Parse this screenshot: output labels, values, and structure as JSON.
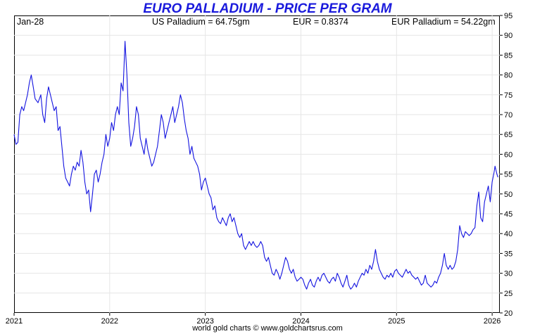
{
  "header": {
    "date": "Jan-28",
    "us_price": "US Palladium = 64.75gm",
    "eur_rate": "EUR = 0.8374",
    "eur_price": "EUR Palladium = 54.22gm"
  },
  "footer": "world gold charts © www.goldchartsrus.com",
  "colors": {
    "line": "#1414e0",
    "title": "#1a1adc",
    "grid": "#e6e6e6"
  },
  "chart_data": {
    "type": "line",
    "title": "EURO PALLADIUM - PRICE PER GRAM",
    "xlabel": "",
    "ylabel": "",
    "xlim": [
      2021.0,
      2026.08
    ],
    "ylim": [
      20,
      95
    ],
    "y_axis_side": "right",
    "x_ticks": [
      2021,
      2022,
      2023,
      2024,
      2025,
      2026
    ],
    "x_tick_labels": [
      "2021",
      "2022",
      "2023",
      "2024",
      "2025",
      "2026"
    ],
    "y_ticks": [
      20,
      25,
      30,
      35,
      40,
      45,
      50,
      55,
      60,
      65,
      70,
      75,
      80,
      85,
      90,
      95
    ],
    "y_tick_labels": [
      "20",
      "25",
      "30",
      "35",
      "40",
      "45",
      "50",
      "55",
      "60",
      "65",
      "70",
      "75",
      "80",
      "85",
      "90",
      "95"
    ],
    "grid": true,
    "series": [
      {
        "values": [
          [
            2021.0,
            65
          ],
          [
            2021.02,
            62.5
          ],
          [
            2021.04,
            63
          ],
          [
            2021.06,
            70
          ],
          [
            2021.08,
            72
          ],
          [
            2021.1,
            71
          ],
          [
            2021.12,
            73
          ],
          [
            2021.14,
            75
          ],
          [
            2021.16,
            78
          ],
          [
            2021.18,
            80
          ],
          [
            2021.2,
            77
          ],
          [
            2021.22,
            74
          ],
          [
            2021.25,
            73
          ],
          [
            2021.28,
            75
          ],
          [
            2021.3,
            70
          ],
          [
            2021.32,
            68
          ],
          [
            2021.34,
            74
          ],
          [
            2021.36,
            77
          ],
          [
            2021.38,
            75
          ],
          [
            2021.4,
            73
          ],
          [
            2021.42,
            71
          ],
          [
            2021.44,
            72
          ],
          [
            2021.46,
            66
          ],
          [
            2021.48,
            67
          ],
          [
            2021.5,
            62
          ],
          [
            2021.52,
            57
          ],
          [
            2021.54,
            54
          ],
          [
            2021.56,
            53
          ],
          [
            2021.58,
            52
          ],
          [
            2021.6,
            55
          ],
          [
            2021.62,
            57
          ],
          [
            2021.64,
            56
          ],
          [
            2021.66,
            58
          ],
          [
            2021.68,
            57
          ],
          [
            2021.7,
            61
          ],
          [
            2021.72,
            58
          ],
          [
            2021.74,
            53
          ],
          [
            2021.76,
            50
          ],
          [
            2021.78,
            51
          ],
          [
            2021.8,
            45.5
          ],
          [
            2021.82,
            50
          ],
          [
            2021.84,
            55
          ],
          [
            2021.86,
            56
          ],
          [
            2021.88,
            53
          ],
          [
            2021.9,
            55
          ],
          [
            2021.92,
            58
          ],
          [
            2021.94,
            60
          ],
          [
            2021.96,
            65
          ],
          [
            2021.98,
            62
          ],
          [
            2022.0,
            64
          ],
          [
            2022.02,
            68
          ],
          [
            2022.04,
            66
          ],
          [
            2022.06,
            70
          ],
          [
            2022.08,
            72
          ],
          [
            2022.1,
            70
          ],
          [
            2022.12,
            78
          ],
          [
            2022.14,
            76
          ],
          [
            2022.16,
            88.5
          ],
          [
            2022.18,
            80
          ],
          [
            2022.2,
            68
          ],
          [
            2022.22,
            62
          ],
          [
            2022.24,
            64
          ],
          [
            2022.26,
            67
          ],
          [
            2022.28,
            72
          ],
          [
            2022.3,
            70
          ],
          [
            2022.32,
            64
          ],
          [
            2022.34,
            62
          ],
          [
            2022.36,
            60
          ],
          [
            2022.38,
            64
          ],
          [
            2022.4,
            61
          ],
          [
            2022.42,
            59
          ],
          [
            2022.44,
            57
          ],
          [
            2022.46,
            58
          ],
          [
            2022.48,
            60
          ],
          [
            2022.5,
            62
          ],
          [
            2022.52,
            66
          ],
          [
            2022.54,
            70
          ],
          [
            2022.56,
            68
          ],
          [
            2022.58,
            64
          ],
          [
            2022.6,
            66
          ],
          [
            2022.62,
            68
          ],
          [
            2022.64,
            70
          ],
          [
            2022.66,
            72
          ],
          [
            2022.68,
            68
          ],
          [
            2022.7,
            70
          ],
          [
            2022.72,
            72
          ],
          [
            2022.74,
            75
          ],
          [
            2022.76,
            73
          ],
          [
            2022.78,
            69
          ],
          [
            2022.8,
            66
          ],
          [
            2022.82,
            64
          ],
          [
            2022.84,
            60
          ],
          [
            2022.86,
            62
          ],
          [
            2022.88,
            59
          ],
          [
            2022.9,
            58
          ],
          [
            2022.92,
            57
          ],
          [
            2022.94,
            55
          ],
          [
            2022.96,
            51
          ],
          [
            2022.98,
            53
          ],
          [
            2023.0,
            54
          ],
          [
            2023.02,
            52
          ],
          [
            2023.04,
            50
          ],
          [
            2023.06,
            49
          ],
          [
            2023.08,
            46
          ],
          [
            2023.1,
            47
          ],
          [
            2023.12,
            44
          ],
          [
            2023.14,
            43
          ],
          [
            2023.16,
            42.5
          ],
          [
            2023.18,
            44
          ],
          [
            2023.2,
            43
          ],
          [
            2023.22,
            42
          ],
          [
            2023.24,
            44
          ],
          [
            2023.26,
            45
          ],
          [
            2023.28,
            43
          ],
          [
            2023.3,
            44
          ],
          [
            2023.32,
            42
          ],
          [
            2023.34,
            40
          ],
          [
            2023.36,
            39
          ],
          [
            2023.38,
            40
          ],
          [
            2023.4,
            37
          ],
          [
            2023.42,
            36
          ],
          [
            2023.44,
            37
          ],
          [
            2023.46,
            38
          ],
          [
            2023.48,
            37
          ],
          [
            2023.5,
            38
          ],
          [
            2023.52,
            37
          ],
          [
            2023.54,
            36.5
          ],
          [
            2023.56,
            37
          ],
          [
            2023.58,
            38
          ],
          [
            2023.6,
            37
          ],
          [
            2023.62,
            34
          ],
          [
            2023.64,
            33
          ],
          [
            2023.66,
            34
          ],
          [
            2023.68,
            32
          ],
          [
            2023.7,
            30
          ],
          [
            2023.72,
            29.5
          ],
          [
            2023.74,
            31
          ],
          [
            2023.76,
            30
          ],
          [
            2023.78,
            28.5
          ],
          [
            2023.8,
            30
          ],
          [
            2023.82,
            32
          ],
          [
            2023.84,
            34
          ],
          [
            2023.86,
            33
          ],
          [
            2023.88,
            31
          ],
          [
            2023.9,
            30
          ],
          [
            2023.92,
            31
          ],
          [
            2023.94,
            29
          ],
          [
            2023.96,
            28
          ],
          [
            2023.98,
            28.5
          ],
          [
            2024.0,
            29
          ],
          [
            2024.02,
            28.5
          ],
          [
            2024.04,
            27
          ],
          [
            2024.06,
            26
          ],
          [
            2024.08,
            27.5
          ],
          [
            2024.1,
            28.5
          ],
          [
            2024.12,
            27
          ],
          [
            2024.14,
            26.5
          ],
          [
            2024.16,
            28
          ],
          [
            2024.18,
            29
          ],
          [
            2024.2,
            28
          ],
          [
            2024.22,
            29.5
          ],
          [
            2024.24,
            30
          ],
          [
            2024.26,
            29
          ],
          [
            2024.28,
            28
          ],
          [
            2024.3,
            27.5
          ],
          [
            2024.32,
            28.5
          ],
          [
            2024.34,
            29
          ],
          [
            2024.36,
            28
          ],
          [
            2024.38,
            30
          ],
          [
            2024.4,
            29
          ],
          [
            2024.42,
            27.5
          ],
          [
            2024.44,
            26.5
          ],
          [
            2024.46,
            28
          ],
          [
            2024.48,
            29.5
          ],
          [
            2024.5,
            27
          ],
          [
            2024.52,
            26
          ],
          [
            2024.54,
            26.5
          ],
          [
            2024.56,
            27.5
          ],
          [
            2024.58,
            26.5
          ],
          [
            2024.6,
            28
          ],
          [
            2024.62,
            29
          ],
          [
            2024.64,
            30
          ],
          [
            2024.66,
            29.5
          ],
          [
            2024.68,
            31
          ],
          [
            2024.7,
            30
          ],
          [
            2024.72,
            32
          ],
          [
            2024.74,
            31
          ],
          [
            2024.76,
            33
          ],
          [
            2024.78,
            36
          ],
          [
            2024.8,
            33
          ],
          [
            2024.82,
            31
          ],
          [
            2024.84,
            30
          ],
          [
            2024.86,
            29
          ],
          [
            2024.88,
            28.5
          ],
          [
            2024.9,
            29.5
          ],
          [
            2024.92,
            29
          ],
          [
            2024.94,
            30
          ],
          [
            2024.96,
            29
          ],
          [
            2024.98,
            30.5
          ],
          [
            2025.0,
            31
          ],
          [
            2025.02,
            30
          ],
          [
            2025.04,
            29.5
          ],
          [
            2025.06,
            29
          ],
          [
            2025.08,
            30
          ],
          [
            2025.1,
            31
          ],
          [
            2025.12,
            30
          ],
          [
            2025.14,
            30.5
          ],
          [
            2025.16,
            29.5
          ],
          [
            2025.18,
            29
          ],
          [
            2025.2,
            28.5
          ],
          [
            2025.22,
            29
          ],
          [
            2025.24,
            28
          ],
          [
            2025.26,
            27
          ],
          [
            2025.28,
            27.5
          ],
          [
            2025.3,
            29.5
          ],
          [
            2025.32,
            27.5
          ],
          [
            2025.34,
            27
          ],
          [
            2025.36,
            26.5
          ],
          [
            2025.38,
            27
          ],
          [
            2025.4,
            28
          ],
          [
            2025.42,
            27.5
          ],
          [
            2025.44,
            29
          ],
          [
            2025.46,
            30
          ],
          [
            2025.48,
            32
          ],
          [
            2025.5,
            35
          ],
          [
            2025.52,
            32
          ],
          [
            2025.54,
            31
          ],
          [
            2025.56,
            32
          ],
          [
            2025.58,
            31
          ],
          [
            2025.6,
            31.5
          ],
          [
            2025.62,
            33
          ],
          [
            2025.64,
            36
          ],
          [
            2025.66,
            42
          ],
          [
            2025.68,
            40
          ],
          [
            2025.7,
            39
          ],
          [
            2025.72,
            40.5
          ],
          [
            2025.74,
            40
          ],
          [
            2025.76,
            39.5
          ],
          [
            2025.78,
            40
          ],
          [
            2025.8,
            41
          ],
          [
            2025.82,
            41.5
          ],
          [
            2025.84,
            47
          ],
          [
            2025.86,
            50.5
          ],
          [
            2025.88,
            44
          ],
          [
            2025.9,
            43
          ],
          [
            2025.92,
            48
          ],
          [
            2025.94,
            50
          ],
          [
            2025.96,
            52
          ],
          [
            2025.98,
            48
          ],
          [
            2026.0,
            53
          ],
          [
            2026.02,
            55.5
          ],
          [
            2026.03,
            57
          ],
          [
            2026.05,
            55
          ],
          [
            2026.06,
            54.2
          ]
        ]
      }
    ]
  }
}
